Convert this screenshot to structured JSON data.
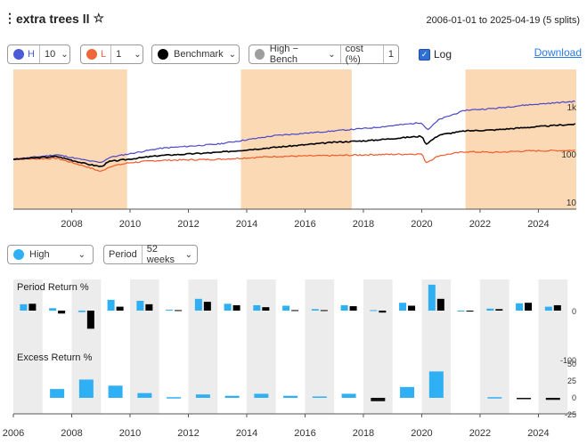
{
  "header": {
    "menu_icon": "kebab-icon",
    "title": "extra trees ll",
    "star_icon": "☆",
    "date_range": "2006-01-01 to 2025-04-19 (5 splits)"
  },
  "controls": {
    "high": {
      "letter": "H",
      "value": "10",
      "color": "#4a5ad8"
    },
    "low": {
      "letter": "L",
      "value": "1",
      "color": "#f0673a"
    },
    "benchmark": {
      "label": "Benchmark",
      "color": "#000000"
    },
    "diff": {
      "label": "High − Bench",
      "cost_label": "cost (%)",
      "cost_value": "1",
      "color": "#9e9e9e"
    },
    "log": {
      "label": "Log",
      "checked": true,
      "check_glyph": "✓"
    },
    "download_label": "Download",
    "chevron": "⌄"
  },
  "main_chart": {
    "x_ticks": [
      "2008",
      "2010",
      "2012",
      "2014",
      "2016",
      "2018",
      "2020",
      "2022",
      "2024"
    ],
    "y_ticks": [
      "1k",
      "100",
      "10"
    ],
    "shaded_periods": [
      [
        2006.0,
        2009.9
      ],
      [
        2013.8,
        2017.6
      ],
      [
        2021.5,
        2025.3
      ]
    ],
    "series_colors": {
      "high": "#4a46c8",
      "benchmark": "#000000",
      "low": "#f05a28"
    }
  },
  "bottom_controls": {
    "series": {
      "label": "High",
      "color": "#2fb0f5"
    },
    "period": {
      "label": "Period",
      "value": "52 weeks"
    }
  },
  "chart_data": [
    {
      "type": "bar",
      "title": "Period Return %",
      "categories": [
        2006,
        2007,
        2008,
        2009,
        2010,
        2011,
        2012,
        2013,
        2014,
        2015,
        2016,
        2017,
        2018,
        2019,
        2020,
        2021,
        2022,
        2023,
        2024,
        2025
      ],
      "series": [
        {
          "name": "High",
          "color": "#2fb0f5",
          "values": [
            13,
            5,
            -3,
            22,
            20,
            2,
            24,
            14,
            11,
            10,
            3,
            11,
            1,
            16,
            53,
            -1,
            4,
            15,
            8,
            0
          ]
        },
        {
          "name": "Benchmark",
          "color": "#000000",
          "values": [
            14,
            -6,
            -37,
            8,
            13,
            1,
            18,
            11,
            7,
            1,
            1,
            9,
            -4,
            10,
            24,
            -2,
            3,
            16,
            11,
            0
          ]
        }
      ],
      "y_ticks": [
        0,
        -100
      ],
      "ylim": [
        -120,
        60
      ]
    },
    {
      "type": "bar",
      "title": "Excess Return %",
      "categories": [
        2006,
        2007,
        2008,
        2009,
        2010,
        2011,
        2012,
        2013,
        2014,
        2015,
        2016,
        2017,
        2018,
        2019,
        2020,
        2021,
        2022,
        2023,
        2024,
        2025
      ],
      "series": [
        {
          "name": "High − Bench",
          "values": [
            0,
            13,
            27,
            18,
            7,
            1,
            5,
            3,
            6,
            3,
            2,
            6,
            -5,
            16,
            39,
            0,
            1,
            -2,
            -3,
            0
          ]
        }
      ],
      "y_ticks": [
        50,
        25,
        0,
        -25
      ],
      "ylim": [
        -30,
        60
      ],
      "x_ticks": [
        "2006",
        "2008",
        "2010",
        "2012",
        "2014",
        "2016",
        "2018",
        "2020",
        "2022",
        "2024"
      ]
    }
  ]
}
